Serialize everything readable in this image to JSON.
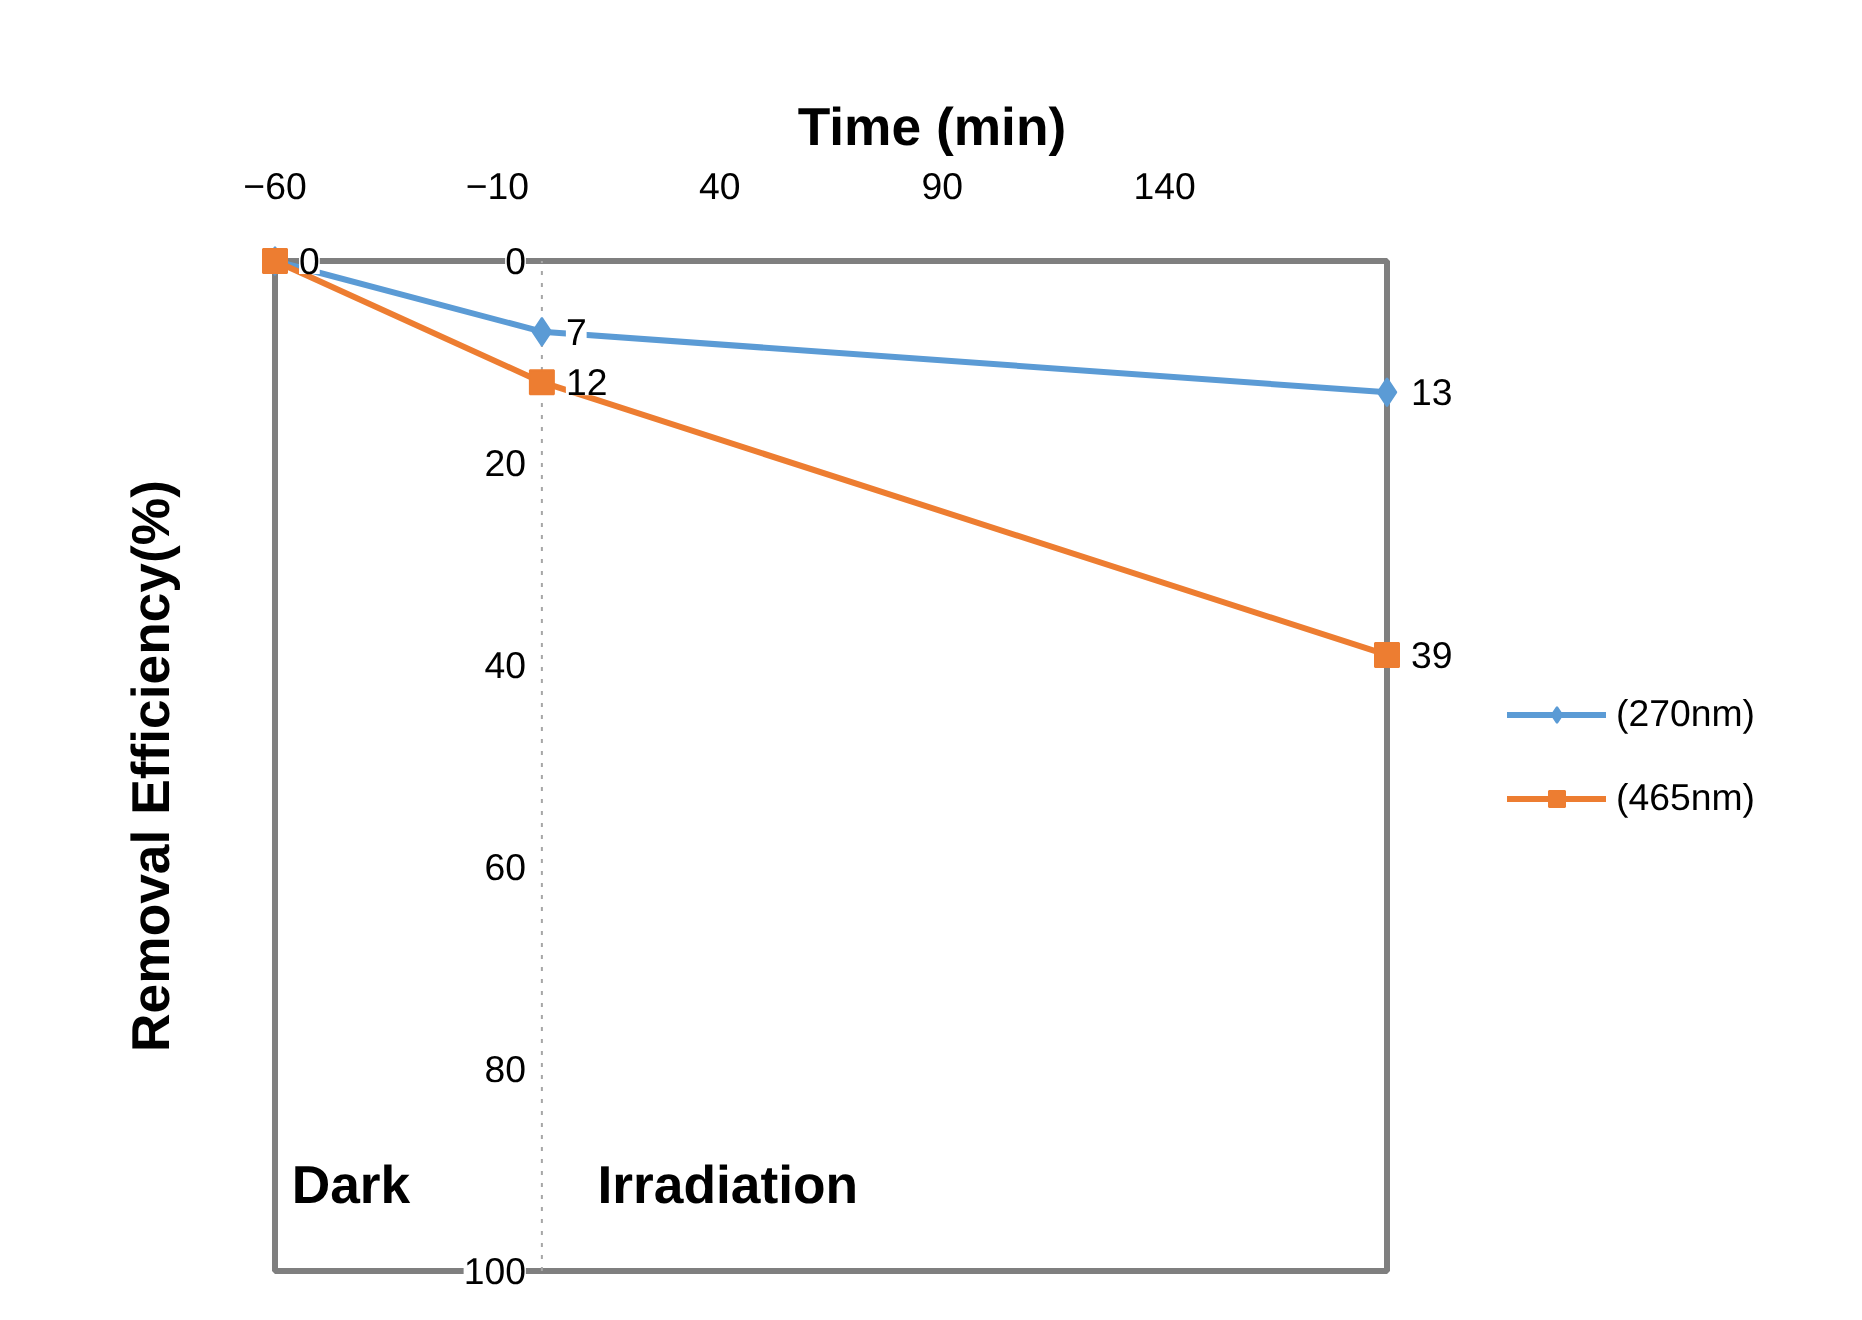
{
  "chart_data": {
    "type": "line",
    "xlabel": "Time (min)",
    "ylabel": "Removal Efficiency(%)",
    "xlim": [
      -60,
      190
    ],
    "xticks": [
      -60,
      -10,
      40,
      90,
      140
    ],
    "ylim": [
      100,
      0
    ],
    "yticks": [
      0,
      20,
      40,
      60,
      80,
      100
    ],
    "grid": false,
    "legend": "right",
    "ref_lines": [
      {
        "axis": "x",
        "value": 0,
        "line_style": "dotted",
        "color": "#a6a6a6"
      }
    ],
    "annotations": [
      "Dark",
      "Irradiation"
    ],
    "series": [
      {
        "name": "(270nm)",
        "color": "#5b9bd5",
        "marker": "diamond",
        "x": [
          -60,
          0,
          190
        ],
        "values": [
          0,
          7,
          13
        ],
        "value_labels": [
          null,
          "7",
          "13"
        ]
      },
      {
        "name": "(465nm)",
        "color": "#ed7d31",
        "marker": "square",
        "x": [
          -60,
          0,
          190
        ],
        "values": [
          0,
          12,
          39
        ],
        "value_labels": [
          "0",
          "12",
          "39"
        ]
      }
    ]
  }
}
